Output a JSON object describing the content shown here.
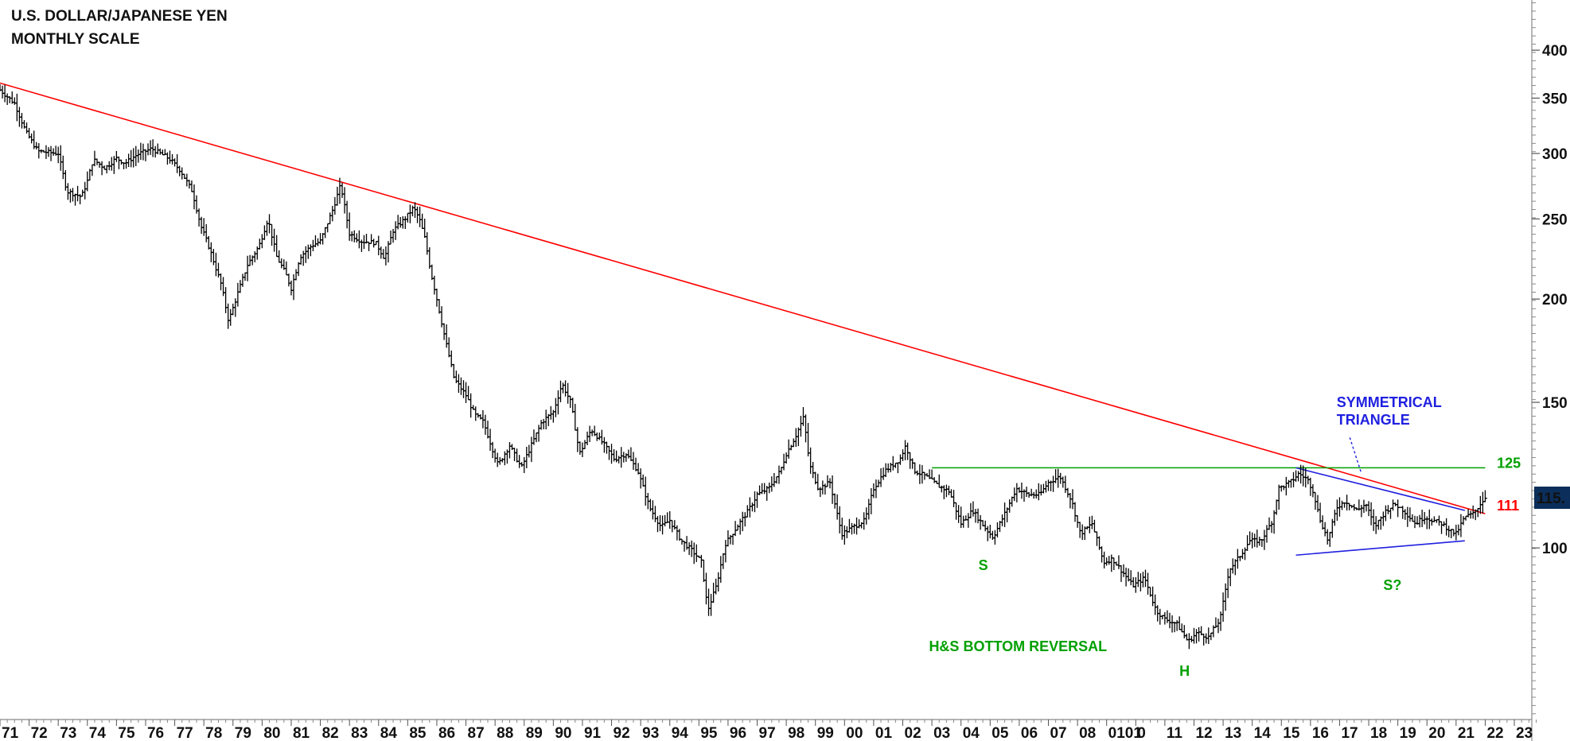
{
  "chart_data": {
    "type": "candlestick",
    "title": "U.S. DOLLAR/JAPANESE YEN",
    "subtitle": "MONTHLY SCALE",
    "y_scale": "log",
    "ylim": [
      62,
      460
    ],
    "xlim": [
      1971.0,
      2023.6
    ],
    "y_ticks": [
      100,
      150,
      200,
      250,
      300,
      350,
      400
    ],
    "x_ticks": [
      "71",
      "72",
      "73",
      "74",
      "75",
      "76",
      "77",
      "78",
      "79",
      "80",
      "81",
      "82",
      "83",
      "84",
      "85",
      "86",
      "87",
      "88",
      "89",
      "90",
      "91",
      "92",
      "93",
      "94",
      "95",
      "96",
      "97",
      "98",
      "99",
      "00",
      "01",
      "02",
      "03",
      "04",
      "05",
      "06",
      "07",
      "08",
      "0101",
      "0",
      "11",
      "12",
      "13",
      "14",
      "15",
      "16",
      "17",
      "18",
      "19",
      "20",
      "21",
      "22",
      "23"
    ],
    "series": [
      {
        "values": [
          [
            1971.0,
            358
          ],
          [
            1971.5,
            345
          ],
          [
            1971.9,
            318
          ],
          [
            1972.3,
            302
          ],
          [
            1973.0,
            300
          ],
          [
            1973.3,
            270
          ],
          [
            1973.8,
            266
          ],
          [
            1974.0,
            278
          ],
          [
            1974.2,
            295
          ],
          [
            1974.6,
            288
          ],
          [
            1975.0,
            296
          ],
          [
            1975.3,
            292
          ],
          [
            1975.7,
            299
          ],
          [
            1976.2,
            304
          ],
          [
            1976.8,
            296
          ],
          [
            1977.2,
            286
          ],
          [
            1977.6,
            270
          ],
          [
            1977.9,
            245
          ],
          [
            1978.2,
            230
          ],
          [
            1978.6,
            208
          ],
          [
            1978.85,
            188
          ],
          [
            1979.2,
            205
          ],
          [
            1979.5,
            220
          ],
          [
            1979.9,
            232
          ],
          [
            1980.2,
            250
          ],
          [
            1980.5,
            225
          ],
          [
            1980.8,
            215
          ],
          [
            1981.0,
            206
          ],
          [
            1981.3,
            225
          ],
          [
            1981.7,
            232
          ],
          [
            1982.0,
            235
          ],
          [
            1982.4,
            255
          ],
          [
            1982.7,
            275
          ],
          [
            1983.0,
            240
          ],
          [
            1983.4,
            235
          ],
          [
            1983.9,
            234
          ],
          [
            1984.2,
            224
          ],
          [
            1984.5,
            242
          ],
          [
            1984.9,
            250
          ],
          [
            1985.2,
            258
          ],
          [
            1985.4,
            250
          ],
          [
            1985.6,
            236
          ],
          [
            1985.8,
            215
          ],
          [
            1986.0,
            200
          ],
          [
            1986.3,
            178
          ],
          [
            1986.6,
            160
          ],
          [
            1987.0,
            153
          ],
          [
            1987.3,
            145
          ],
          [
            1987.6,
            142
          ],
          [
            1987.9,
            132
          ],
          [
            1988.1,
            126
          ],
          [
            1988.5,
            133
          ],
          [
            1988.9,
            125
          ],
          [
            1989.2,
            132
          ],
          [
            1989.6,
            142
          ],
          [
            1990.0,
            146
          ],
          [
            1990.3,
            158
          ],
          [
            1990.6,
            150
          ],
          [
            1990.9,
            130
          ],
          [
            1991.3,
            139
          ],
          [
            1991.7,
            134
          ],
          [
            1992.1,
            128
          ],
          [
            1992.5,
            130
          ],
          [
            1992.9,
            124
          ],
          [
            1993.3,
            112
          ],
          [
            1993.7,
            106
          ],
          [
            1994.0,
            108
          ],
          [
            1994.4,
            102
          ],
          [
            1994.8,
            99
          ],
          [
            1995.1,
            96
          ],
          [
            1995.3,
            84
          ],
          [
            1995.6,
            90
          ],
          [
            1995.9,
            101
          ],
          [
            1996.3,
            106
          ],
          [
            1996.7,
            111
          ],
          [
            1997.0,
            116
          ],
          [
            1997.4,
            118
          ],
          [
            1997.8,
            124
          ],
          [
            1998.0,
            130
          ],
          [
            1998.3,
            136
          ],
          [
            1998.6,
            144
          ],
          [
            1998.8,
            126
          ],
          [
            1999.1,
            118
          ],
          [
            1999.5,
            120
          ],
          [
            1999.9,
            104
          ],
          [
            2000.3,
            106
          ],
          [
            2000.7,
            108
          ],
          [
            2001.0,
            118
          ],
          [
            2001.4,
            124
          ],
          [
            2001.9,
            128
          ],
          [
            2002.1,
            133
          ],
          [
            2002.4,
            124
          ],
          [
            2002.8,
            122
          ],
          [
            2003.2,
            119
          ],
          [
            2003.6,
            117
          ],
          [
            2004.0,
            107
          ],
          [
            2004.4,
            111
          ],
          [
            2004.8,
            106
          ],
          [
            2005.1,
            103
          ],
          [
            2005.5,
            110
          ],
          [
            2005.9,
            118
          ],
          [
            2006.3,
            116
          ],
          [
            2006.7,
            116
          ],
          [
            2007.0,
            120
          ],
          [
            2007.4,
            122
          ],
          [
            2007.8,
            114
          ],
          [
            2008.1,
            104
          ],
          [
            2008.5,
            107
          ],
          [
            2008.9,
            96
          ],
          [
            2009.2,
            97
          ],
          [
            2009.6,
            93
          ],
          [
            2009.9,
            90
          ],
          [
            2010.3,
            92
          ],
          [
            2010.7,
            84
          ],
          [
            2011.0,
            82
          ],
          [
            2011.4,
            81
          ],
          [
            2011.8,
            77
          ],
          [
            2012.1,
            79
          ],
          [
            2012.5,
            78
          ],
          [
            2012.9,
            82
          ],
          [
            2013.2,
            94
          ],
          [
            2013.6,
            98
          ],
          [
            2013.9,
            102
          ],
          [
            2014.3,
            102
          ],
          [
            2014.7,
            108
          ],
          [
            2014.9,
            118
          ],
          [
            2015.3,
            120
          ],
          [
            2015.6,
            123
          ],
          [
            2015.9,
            121
          ],
          [
            2016.1,
            117
          ],
          [
            2016.3,
            109
          ],
          [
            2016.6,
            102
          ],
          [
            2016.9,
            112
          ],
          [
            2017.2,
            114
          ],
          [
            2017.6,
            111
          ],
          [
            2017.9,
            113
          ],
          [
            2018.2,
            106
          ],
          [
            2018.6,
            111
          ],
          [
            2018.9,
            113
          ],
          [
            2019.2,
            111
          ],
          [
            2019.6,
            107
          ],
          [
            2019.9,
            109
          ],
          [
            2020.2,
            108
          ],
          [
            2020.5,
            107
          ],
          [
            2020.8,
            105
          ],
          [
            2021.0,
            104
          ],
          [
            2021.3,
            109
          ],
          [
            2021.6,
            110
          ],
          [
            2021.9,
            114
          ],
          [
            2022.0,
            115
          ]
        ]
      }
    ],
    "lines": [
      {
        "name": "downtrend",
        "color": "#ff0000",
        "from": [
          1971.0,
          365
        ],
        "to": [
          2022.0,
          110
        ]
      },
      {
        "name": "neckline",
        "color": "#00a000",
        "from": [
          2003.0,
          125
        ],
        "to": [
          2022.0,
          125
        ]
      },
      {
        "name": "triangle-upper",
        "color": "#2020e0",
        "from": [
          2015.5,
          125
        ],
        "to": [
          2021.3,
          111
        ]
      },
      {
        "name": "triangle-lower",
        "color": "#2020e0",
        "from": [
          2015.5,
          98
        ],
        "to": [
          2021.3,
          102
        ]
      }
    ],
    "annotations": [
      {
        "text": "SYMMETRICAL",
        "color": "#2020e0",
        "x": 2016.9,
        "y": 148
      },
      {
        "text": "TRIANGLE",
        "color": "#2020e0",
        "x": 2016.9,
        "y": 141
      },
      {
        "text": "125",
        "color": "#00a000",
        "x": 2022.4,
        "y": 125
      },
      {
        "text": "111",
        "color": "#ff0000",
        "x": 2022.4,
        "y": 111
      },
      {
        "text": "S",
        "color": "#00a000",
        "x": 2004.6,
        "y": 94
      },
      {
        "text": "S?",
        "color": "#00a000",
        "x": 2018.5,
        "y": 89
      },
      {
        "text": "H&S BOTTOM REVERSAL",
        "color": "#00a000",
        "x": 2002.9,
        "y": 75
      },
      {
        "text": "H",
        "color": "#00a000",
        "x": 2011.5,
        "y": 70
      }
    ],
    "last_price": {
      "text": "115.",
      "value": 115
    },
    "colors": {
      "axis": "#888888",
      "price": "#000000",
      "badge_bg": "#0b2e5a",
      "badge_text": "#ffffff"
    }
  }
}
